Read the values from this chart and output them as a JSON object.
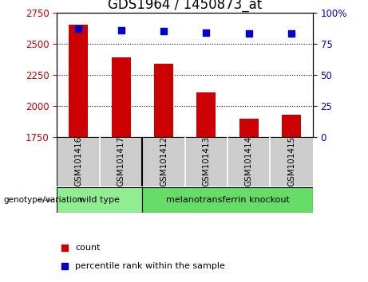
{
  "title": "GDS1964 / 1450873_at",
  "categories": [
    "GSM101416",
    "GSM101417",
    "GSM101412",
    "GSM101413",
    "GSM101414",
    "GSM101415"
  ],
  "bar_values": [
    2655,
    2390,
    2340,
    2110,
    1895,
    1925
  ],
  "percentile_values": [
    87,
    86,
    85,
    84,
    83,
    83
  ],
  "bar_color": "#cc0000",
  "dot_color": "#0000cc",
  "ylim_left": [
    1750,
    2750
  ],
  "ylim_right": [
    0,
    100
  ],
  "yticks_left": [
    1750,
    2000,
    2250,
    2500,
    2750
  ],
  "yticks_right": [
    0,
    25,
    50,
    75,
    100
  ],
  "grid_values": [
    2000,
    2250,
    2500
  ],
  "wt_color": "#90ee90",
  "mtko_color": "#66dd66",
  "group_label": "genotype/variation",
  "legend_count_label": "count",
  "legend_percentile_label": "percentile rank within the sample",
  "bar_width": 0.45,
  "label_area_color": "#cccccc",
  "title_fontsize": 12,
  "tick_fontsize": 8.5,
  "left_tick_color": "#cc0000",
  "right_tick_color": "#0000cc"
}
